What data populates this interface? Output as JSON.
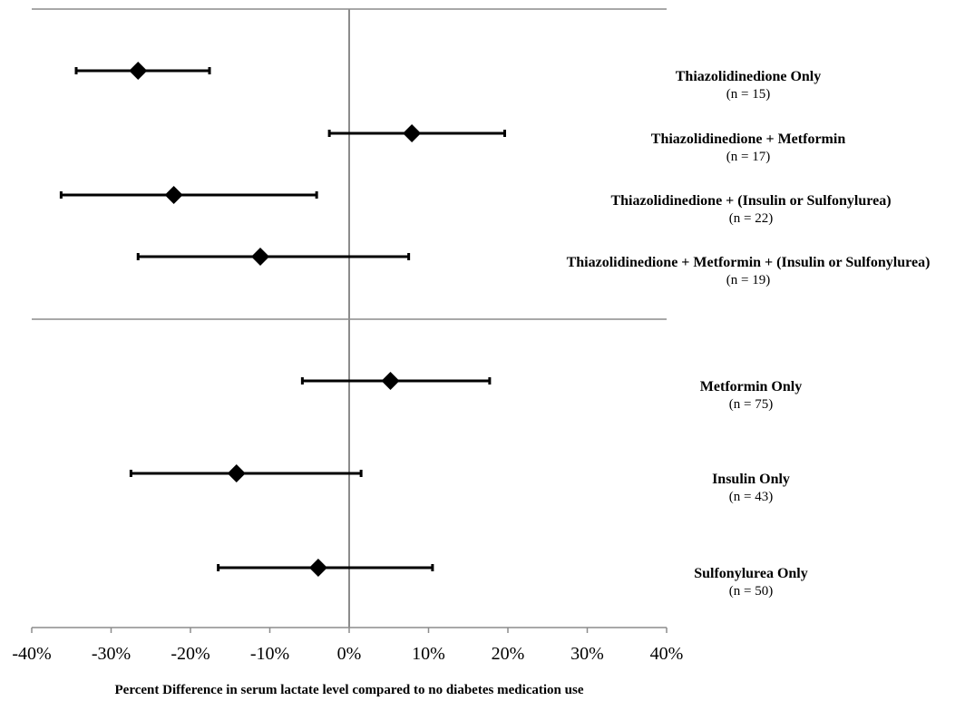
{
  "chart_data": {
    "type": "forest",
    "xlabel": "Percent Difference in serum lactate level compared to no diabetes medication use",
    "xlim": [
      -40,
      40
    ],
    "xticks": [
      -40,
      -30,
      -20,
      -10,
      0,
      10,
      20,
      30,
      40
    ],
    "xtick_labels": [
      "-40%",
      "-30%",
      "-20%",
      "-10%",
      "0%",
      "10%",
      "20%",
      "30%",
      "40%"
    ],
    "grid": false,
    "groups": [
      {
        "rows": [
          {
            "name": "Thiazolidinedione Only",
            "n_label": "(n = 15)",
            "estimate": -26.6,
            "lower": -34.4,
            "upper": -17.6
          },
          {
            "name": "Thiazolidinedione + Metformin",
            "n_label": "(n =  17)",
            "estimate": 7.9,
            "lower": -2.5,
            "upper": 19.6
          },
          {
            "name": "Thiazolidinedione + (Insulin or Sulfonylurea)",
            "n_label": "(n = 22)",
            "estimate": -22.1,
            "lower": -36.3,
            "upper": -4.1
          },
          {
            "name": "Thiazolidinedione + Metformin + (Insulin or Sulfonylurea)",
            "n_label": "(n = 19)",
            "estimate": -11.2,
            "lower": -26.6,
            "upper": 7.5
          }
        ]
      },
      {
        "rows": [
          {
            "name": "Metformin Only",
            "n_label": "(n = 75)",
            "estimate": 5.2,
            "lower": -5.9,
            "upper": 17.7
          },
          {
            "name": "Insulin Only",
            "n_label": "(n = 43)",
            "estimate": -14.2,
            "lower": -27.5,
            "upper": 1.5
          },
          {
            "name": "Sulfonylurea Only",
            "n_label": "(n = 50)",
            "estimate": -3.9,
            "lower": -16.5,
            "upper": 10.5
          }
        ]
      }
    ]
  }
}
